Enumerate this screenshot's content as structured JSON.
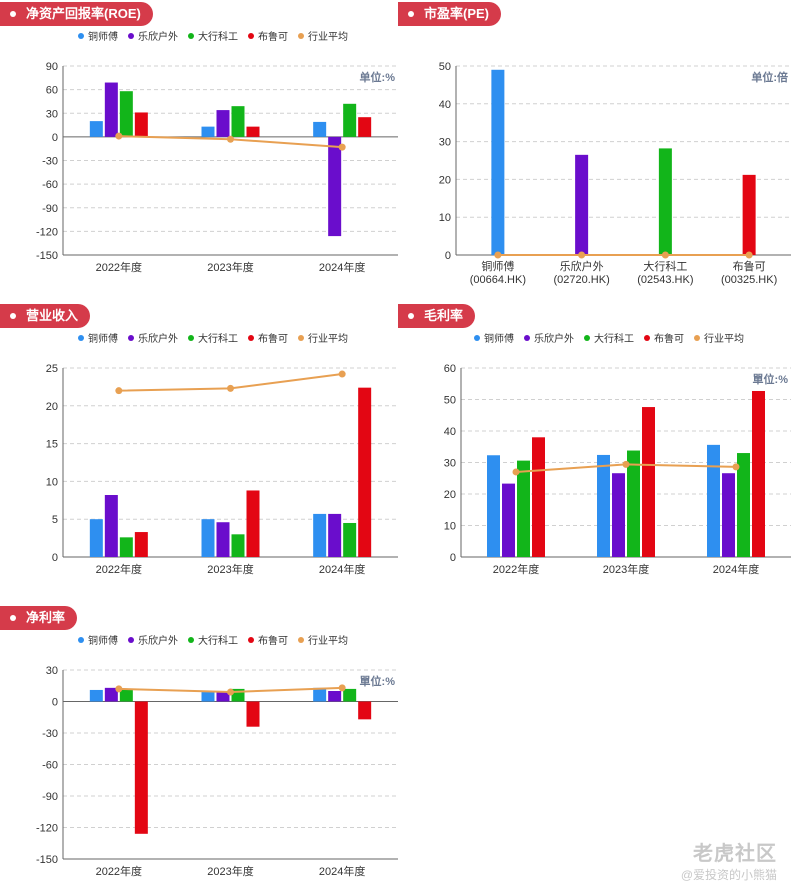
{
  "colors": {
    "series": [
      "#2e8ff0",
      "#6a0dcc",
      "#12b51a",
      "#e30613"
    ],
    "avg": "#e8a052",
    "tag_bg": "#d53b4a"
  },
  "legend": [
    "铜师傅",
    "乐欣户外",
    "大行科工",
    "布鲁可",
    "行业平均"
  ],
  "chart_data": [
    {
      "id": "roe",
      "type": "bar",
      "title": "净资产回报率(ROE)",
      "unit": "单位:%",
      "categories": [
        "2022年度",
        "2023年度",
        "2024年度"
      ],
      "ylim": [
        -150,
        90
      ],
      "yticks": [
        90,
        60,
        30,
        0,
        -30,
        -60,
        -90,
        -120,
        -150
      ],
      "ytick_labels": [
        "90",
        "60",
        "30",
        "0",
        "-30",
        "-60",
        "-90",
        "-120",
        "-150"
      ],
      "series": [
        {
          "name": "铜师傅",
          "values": [
            20,
            13,
            19
          ]
        },
        {
          "name": "乐欣户外",
          "values": [
            69,
            34,
            -126
          ]
        },
        {
          "name": "大行科工",
          "values": [
            58,
            39,
            42
          ]
        },
        {
          "name": "布鲁可",
          "values": [
            31,
            13,
            25
          ]
        }
      ],
      "avg": {
        "name": "行业平均",
        "values": [
          1,
          -3,
          -13
        ]
      }
    },
    {
      "id": "pe",
      "type": "bar",
      "title": "市盈率(PE)",
      "unit": "单位:倍",
      "categories": [
        "铜师傅",
        "乐欣户外",
        "大行科工",
        "布鲁可"
      ],
      "codes": [
        "(00664.HK)",
        "(02720.HK)",
        "(02543.HK)",
        "(00325.HK)"
      ],
      "ylim": [
        0,
        50
      ],
      "yticks": [
        50,
        40,
        30,
        20,
        10,
        0
      ],
      "ytick_labels": [
        "50",
        "40",
        "30",
        "20",
        "10",
        "0"
      ],
      "values": [
        49,
        26.5,
        28.2,
        21.2
      ],
      "avg": {
        "name": "行业平均",
        "values": [
          0,
          0,
          0,
          0
        ]
      }
    },
    {
      "id": "revenue",
      "type": "bar",
      "title": "营业收入",
      "unit": "",
      "categories": [
        "2022年度",
        "2023年度",
        "2024年度"
      ],
      "ylim": [
        0,
        25
      ],
      "yticks": [
        25,
        20,
        15,
        10,
        5,
        0
      ],
      "ytick_labels": [
        "25",
        "20",
        "15",
        "10",
        "5",
        "0"
      ],
      "series": [
        {
          "name": "铜师傅",
          "values": [
            5,
            5,
            5.7
          ]
        },
        {
          "name": "乐欣户外",
          "values": [
            8.2,
            4.6,
            5.7
          ]
        },
        {
          "name": "大行科工",
          "values": [
            2.6,
            3,
            4.5
          ]
        },
        {
          "name": "布鲁可",
          "values": [
            3.3,
            8.8,
            22.4
          ]
        }
      ],
      "avg": {
        "name": "行业平均",
        "values": [
          22,
          22.3,
          24.2
        ]
      }
    },
    {
      "id": "gross",
      "type": "bar",
      "title": "毛利率",
      "unit": "單位:%",
      "categories": [
        "2022年度",
        "2023年度",
        "2024年度"
      ],
      "ylim": [
        0,
        60
      ],
      "yticks": [
        60,
        50,
        40,
        30,
        20,
        10,
        0
      ],
      "ytick_labels": [
        "60",
        "50",
        "40",
        "30",
        "20",
        "10",
        "0"
      ],
      "series": [
        {
          "name": "铜师傅",
          "values": [
            32.3,
            32.4,
            35.6
          ]
        },
        {
          "name": "乐欣户外",
          "values": [
            23.3,
            26.6,
            26.6
          ]
        },
        {
          "name": "大行科工",
          "values": [
            30.6,
            33.8,
            33
          ]
        },
        {
          "name": "布鲁可",
          "values": [
            38,
            47.6,
            52.7
          ]
        }
      ],
      "avg": {
        "name": "行业平均",
        "values": [
          27,
          29.4,
          28.6
        ]
      }
    },
    {
      "id": "net",
      "type": "bar",
      "title": "净利率",
      "unit": "單位:%",
      "categories": [
        "2022年度",
        "2023年度",
        "2024年度"
      ],
      "ylim": [
        -150,
        30
      ],
      "yticks": [
        30,
        0,
        -30,
        -60,
        -90,
        -120,
        -150
      ],
      "ytick_labels": [
        "30",
        "0",
        "-30",
        "-60",
        "-90",
        "-120",
        "-150"
      ],
      "series": [
        {
          "name": "铜师傅",
          "values": [
            11,
            9,
            13
          ]
        },
        {
          "name": "乐欣户外",
          "values": [
            13,
            9,
            10
          ]
        },
        {
          "name": "大行科工",
          "values": [
            12,
            12,
            12
          ]
        },
        {
          "name": "布鲁可",
          "values": [
            -126,
            -24,
            -17
          ]
        }
      ],
      "avg": {
        "name": "行业平均",
        "values": [
          12,
          9,
          13
        ]
      }
    }
  ],
  "watermark": {
    "logo": "老虎社区",
    "handle": "@爱投资的小熊猫"
  }
}
